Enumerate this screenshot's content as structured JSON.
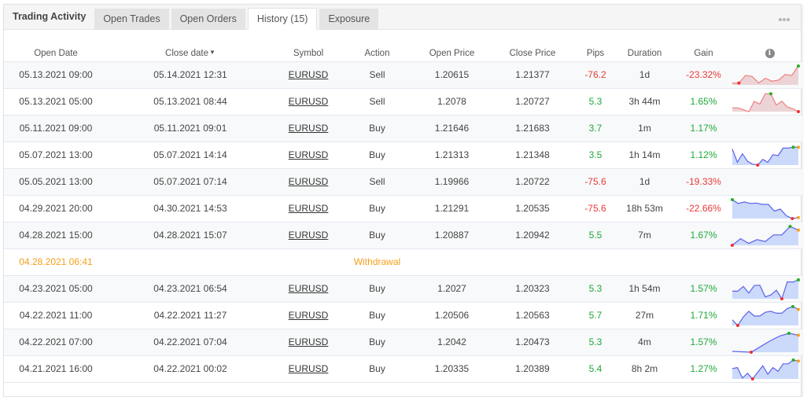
{
  "panel": {
    "title": "Trading Activity",
    "tabs": [
      {
        "label": "Open Trades",
        "active": false
      },
      {
        "label": "Open Orders",
        "active": false
      },
      {
        "label": "History (15)",
        "active": true
      },
      {
        "label": "Exposure",
        "active": false
      }
    ],
    "more_icon": "more-horizontal-icon"
  },
  "table": {
    "columns": [
      "Open Date",
      "Close date",
      "Symbol",
      "Action",
      "Open Price",
      "Close Price",
      "Pips",
      "Duration",
      "Gain"
    ],
    "sort_indicator": "▼",
    "info_icon": "i",
    "rows": [
      {
        "open_date": "05.13.2021 09:00",
        "close_date": "05.14.2021 12:31",
        "symbol": "EURUSD",
        "action": "Sell",
        "open_price": "1.20615",
        "close_price": "1.21377",
        "pips": "-76.2",
        "duration": "1d",
        "gain": "-23.32%",
        "result": "neg",
        "spark": {
          "color": "red",
          "points": [
            0.1,
            0.1,
            0.5,
            0.45,
            0.1,
            0.35,
            0.2,
            0.25,
            0.55,
            0.5,
            1.0
          ],
          "min": 1,
          "max": 10,
          "last": null
        }
      },
      {
        "open_date": "05.13.2021 05:00",
        "close_date": "05.13.2021 08:44",
        "symbol": "EURUSD",
        "action": "Sell",
        "open_price": "1.2078",
        "close_price": "1.20727",
        "pips": "5.3",
        "duration": "3h 44m",
        "gain": "1.65%",
        "result": "pos",
        "spark": {
          "color": "red",
          "points": [
            0.2,
            0.2,
            0.1,
            0.0,
            0.55,
            0.4,
            0.95,
            0.95,
            0.35,
            0.55,
            0.25,
            0.15,
            0.0
          ],
          "min": 12,
          "max": 7,
          "last": null
        }
      },
      {
        "open_date": "05.11.2021 09:00",
        "close_date": "05.11.2021 09:01",
        "symbol": "EURUSD",
        "action": "Buy",
        "open_price": "1.21646",
        "close_price": "1.21683",
        "pips": "3.7",
        "duration": "1m",
        "gain": "1.17%",
        "result": "pos",
        "spark": null
      },
      {
        "open_date": "05.07.2021 13:00",
        "close_date": "05.07.2021 14:14",
        "symbol": "EURUSD",
        "action": "Buy",
        "open_price": "1.21313",
        "close_price": "1.21348",
        "pips": "3.5",
        "duration": "1h 14m",
        "gain": "1.12%",
        "result": "pos",
        "spark": {
          "color": "blue",
          "points": [
            0.85,
            0.15,
            0.6,
            0.2,
            0.05,
            0.0,
            0.3,
            0.15,
            0.55,
            0.5,
            0.9,
            0.9,
            0.95,
            0.95
          ],
          "min": 5,
          "max": 12,
          "last": 13
        }
      },
      {
        "open_date": "05.05.2021 13:00",
        "close_date": "05.07.2021 07:14",
        "symbol": "EURUSD",
        "action": "Sell",
        "open_price": "1.19966",
        "close_price": "1.20722",
        "pips": "-75.6",
        "duration": "1d",
        "gain": "-19.33%",
        "result": "neg",
        "spark": null
      },
      {
        "open_date": "04.29.2021 20:00",
        "close_date": "04.30.2021 14:53",
        "symbol": "EURUSD",
        "action": "Buy",
        "open_price": "1.21291",
        "close_price": "1.20535",
        "pips": "-75.6",
        "duration": "18h 53m",
        "gain": "-22.66%",
        "result": "neg",
        "spark": {
          "color": "blue",
          "points": [
            1.0,
            0.8,
            0.88,
            0.8,
            0.82,
            0.75,
            0.75,
            0.4,
            0.5,
            0.15,
            0.0,
            0.05
          ],
          "min": 10,
          "max": 0,
          "last": 11
        }
      },
      {
        "open_date": "04.28.2021 15:00",
        "close_date": "04.28.2021 15:07",
        "symbol": "EURUSD",
        "action": "Buy",
        "open_price": "1.20887",
        "close_price": "1.20942",
        "pips": "5.5",
        "duration": "7m",
        "gain": "1.67%",
        "result": "pos",
        "spark": {
          "color": "blue",
          "points": [
            0.0,
            0.35,
            0.1,
            0.3,
            0.2,
            0.55,
            0.55,
            1.0,
            0.8
          ],
          "min": 0,
          "max": 7,
          "last": 8
        }
      },
      {
        "type": "withdrawal",
        "open_date": "04.28.2021 06:41",
        "label": "Withdrawal"
      },
      {
        "open_date": "04.23.2021 05:00",
        "close_date": "04.23.2021 06:54",
        "symbol": "EURUSD",
        "action": "Buy",
        "open_price": "1.2027",
        "close_price": "1.20323",
        "pips": "5.3",
        "duration": "1h 54m",
        "gain": "1.57%",
        "result": "pos",
        "spark": {
          "color": "blue",
          "points": [
            0.4,
            0.4,
            0.65,
            0.3,
            0.7,
            0.72,
            0.1,
            0.2,
            0.45,
            0.0,
            0.9,
            0.88,
            1.0
          ],
          "min": 9,
          "max": 12,
          "last": null
        }
      },
      {
        "open_date": "04.22.2021 11:00",
        "close_date": "04.22.2021 11:27",
        "symbol": "EURUSD",
        "action": "Buy",
        "open_price": "1.20506",
        "close_price": "1.20563",
        "pips": "5.7",
        "duration": "27m",
        "gain": "1.71%",
        "result": "pos",
        "spark": {
          "color": "blue",
          "points": [
            0.3,
            0.0,
            0.45,
            0.75,
            0.5,
            0.5,
            0.7,
            0.75,
            0.65,
            0.65,
            0.9,
            1.0,
            0.85
          ],
          "min": 1,
          "max": 11,
          "last": 12
        }
      },
      {
        "open_date": "04.22.2021 07:00",
        "close_date": "04.22.2021 07:04",
        "symbol": "EURUSD",
        "action": "Buy",
        "open_price": "1.2042",
        "close_price": "1.20473",
        "pips": "5.3",
        "duration": "4m",
        "gain": "1.57%",
        "result": "pos",
        "spark": {
          "color": "blue",
          "points": [
            0.05,
            0.02,
            0.0,
            0.3,
            0.6,
            0.85,
            1.0,
            0.9
          ],
          "min": 2,
          "max": 6,
          "last": 7
        }
      },
      {
        "open_date": "04.21.2021 16:00",
        "close_date": "04.22.2021 00:02",
        "symbol": "EURUSD",
        "action": "Buy",
        "open_price": "1.20335",
        "close_price": "1.20389",
        "pips": "5.4",
        "duration": "8h 2m",
        "gain": "1.27%",
        "result": "pos",
        "spark": {
          "color": "blue",
          "points": [
            0.55,
            0.6,
            0.05,
            0.3,
            0.0,
            0.35,
            0.7,
            0.25,
            0.6,
            0.4,
            0.8,
            0.8,
            1.0,
            0.95
          ],
          "min": 4,
          "max": 12,
          "last": 13
        }
      }
    ]
  },
  "colors": {
    "positive": "#1fa83a",
    "negative": "#e83a3a",
    "withdrawal": "#f5a01a",
    "spark_red_line": "#f08080",
    "spark_red_fill": "#ecd4d6",
    "spark_blue_line": "#5b63e8",
    "spark_blue_fill": "#cbd9fb",
    "marker_max": "#22b022",
    "marker_min": "#f03030",
    "marker_last": "#f5a01a"
  }
}
